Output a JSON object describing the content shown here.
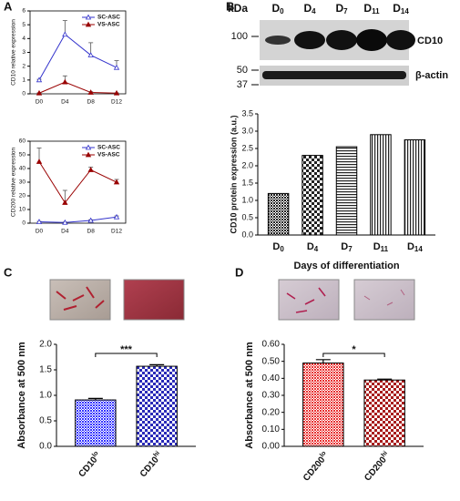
{
  "panels": [
    "A",
    "B",
    "C",
    "D"
  ],
  "blot": {
    "unit": "kDa",
    "markers": [
      "100",
      "50",
      "37"
    ],
    "lanes": [
      {
        "main": "D",
        "sub": "0"
      },
      {
        "main": "D",
        "sub": "4"
      },
      {
        "main": "D",
        "sub": "7"
      },
      {
        "main": "D",
        "sub": "11"
      },
      {
        "main": "D",
        "sub": "14"
      }
    ],
    "proteins": [
      "CD10",
      "β-actin"
    ]
  },
  "chart_data": [
    {
      "type": "line",
      "ylabel": "CD10 relative expression",
      "categories": [
        "D0",
        "D4",
        "D8",
        "D12"
      ],
      "series": [
        {
          "name": "SC-ASC",
          "color": "#3333cc",
          "marker": "open-triangle",
          "values": [
            1,
            4.3,
            2.8,
            1.9
          ],
          "errors": [
            0.05,
            1.0,
            0.9,
            0.5
          ]
        },
        {
          "name": "VS-ASC",
          "color": "#990000",
          "marker": "filled-triangle",
          "values": [
            0.05,
            0.85,
            0.1,
            0.05
          ],
          "errors": [
            0.02,
            0.45,
            0.05,
            0.02
          ]
        }
      ],
      "ylim": [
        0,
        6
      ],
      "yticks": [
        0,
        1,
        2,
        3,
        4,
        5,
        6
      ],
      "legend": "upper right"
    },
    {
      "type": "line",
      "ylabel": "CD200 relative expression",
      "categories": [
        "D0",
        "D4",
        "D8",
        "D12"
      ],
      "series": [
        {
          "name": "SC-ASC",
          "color": "#3333cc",
          "marker": "open-triangle",
          "values": [
            1,
            0.5,
            2,
            4.5
          ],
          "errors": [
            0.3,
            0.3,
            0.5,
            0.8
          ]
        },
        {
          "name": "VS-ASC",
          "color": "#990000",
          "marker": "filled-triangle",
          "values": [
            45,
            15,
            39,
            30
          ],
          "errors": [
            10,
            9,
            2,
            2
          ]
        }
      ],
      "ylim": [
        0,
        60
      ],
      "yticks": [
        0,
        10,
        20,
        30,
        40,
        50,
        60
      ],
      "legend": "upper right"
    },
    {
      "type": "bar",
      "ylabel": "CD10 protein expression (a.u.)",
      "xlabel": "Days of differentiation",
      "categories": [
        {
          "main": "D",
          "sub": "0"
        },
        {
          "main": "D",
          "sub": "4"
        },
        {
          "main": "D",
          "sub": "7"
        },
        {
          "main": "D",
          "sub": "11"
        },
        {
          "main": "D",
          "sub": "14"
        }
      ],
      "values": [
        1.2,
        2.3,
        2.55,
        2.9,
        2.75
      ],
      "colors": [
        "#222222",
        "#222222",
        "#222222",
        "#222222",
        "#222222"
      ],
      "patterns": [
        "fine",
        "checker",
        "hlines",
        "vlines",
        "vlines"
      ],
      "ylim": [
        0,
        3.5
      ],
      "yticks": [
        {
          "value": 0,
          "label": "0.0"
        },
        0.5,
        {
          "value": 1,
          "label": "1.0"
        },
        1.5,
        {
          "value": 2,
          "label": "2.0"
        },
        2.5,
        {
          "value": 3,
          "label": "3.0"
        },
        3.5
      ]
    },
    {
      "type": "bar",
      "ylabel": "Absorbance at 500 nm",
      "categories": [
        {
          "main": "CD10",
          "sup": "lo"
        },
        {
          "main": "CD10",
          "sup": "hi"
        }
      ],
      "values": [
        0.91,
        1.57
      ],
      "errors": [
        0.03,
        0.03
      ],
      "colors": [
        "#3535ff",
        "#2a2ab8"
      ],
      "patterns": [
        "fine",
        "checker"
      ],
      "annotation": "***",
      "ylim": [
        0,
        2
      ],
      "yticks": [
        {
          "value": 0,
          "label": "0.0"
        },
        0.5,
        {
          "value": 1,
          "label": "1.0"
        },
        1.5,
        {
          "value": 2,
          "label": "2.0"
        }
      ]
    },
    {
      "type": "bar",
      "ylabel": "Absorbance at 500 nm",
      "categories": [
        {
          "main": "CD200",
          "sup": "lo"
        },
        {
          "main": "CD200",
          "sup": "hi"
        }
      ],
      "values": [
        0.49,
        0.39
      ],
      "errors": [
        0.02,
        0.005
      ],
      "colors": [
        "#e83030",
        "#a81c1c"
      ],
      "patterns": [
        "fine",
        "checker"
      ],
      "annotation": "*",
      "ylim": [
        0,
        0.6
      ],
      "yticks": [
        {
          "value": 0,
          "label": "0.00"
        },
        {
          "value": 0.1,
          "label": "0.10"
        },
        {
          "value": 0.2,
          "label": "0.20"
        },
        {
          "value": 0.3,
          "label": "0.30"
        },
        {
          "value": 0.4,
          "label": "0.40"
        },
        {
          "value": 0.5,
          "label": "0.50"
        },
        {
          "value": 0.6,
          "label": "0.60"
        }
      ]
    }
  ]
}
